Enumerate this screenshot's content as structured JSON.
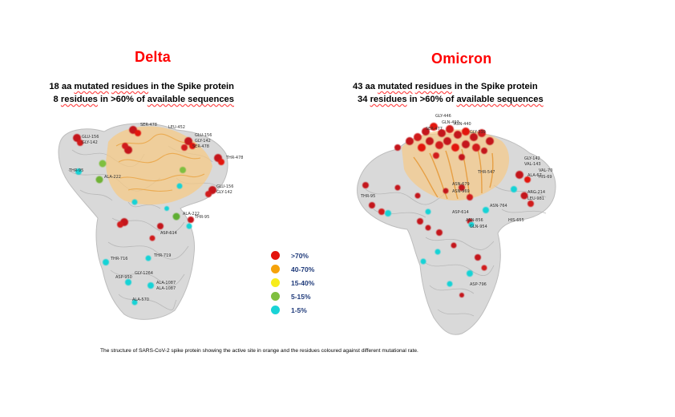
{
  "delta": {
    "title": "Delta",
    "line1_pre": "18 aa ",
    "line1_u1": "mutated",
    "line1_mid": " ",
    "line1_u2": "residues",
    "line1_post": " in the Spike protein",
    "line2_pre": "8 ",
    "line2_u1": "residues",
    "line2_mid": " in >60% of ",
    "line2_u2": "available sequences",
    "labels": [
      "GLU-156",
      "GLY-142",
      "THR-95",
      "ALA-222",
      "SER-478",
      "LEU-452",
      "GLU-156",
      "GLY-142",
      "SER-478",
      "THR-478",
      "GLU-156",
      "GLY-142",
      "ALA-222",
      "THR-95",
      "ASP-614",
      "THR-719",
      "GLY-1264",
      "ALA-1087",
      "ALA-1087",
      "ASP-950",
      "THR-716",
      "ALA-570"
    ]
  },
  "omicron": {
    "title": "Omicron",
    "line1_pre": "43 aa ",
    "line1_u1": "mutated",
    "line1_mid": " ",
    "line1_u2": "residues",
    "line1_post": " in the Spike protein",
    "line2_pre": "34 ",
    "line2_u1": "residues",
    "line2_mid": " in >60% of ",
    "line2_u2": "available sequences",
    "labels": [
      "GLY-446",
      "GLN-493",
      "ASN-440",
      "SER-477",
      "GLY-339",
      "GLY-142",
      "VAL-143",
      "ALA-67",
      "VAL-70",
      "HIS-69",
      "THR-547",
      "ASN-969",
      "ARG-214",
      "LEU-981",
      "ASN-679",
      "ASN-764",
      "HIS-655",
      "GLN-954",
      "ASP-614",
      "ASN-856",
      "ASP-796",
      "THR-95"
    ]
  },
  "legend": [
    {
      "label": ">70%",
      "color": "#e3120b"
    },
    {
      "label": "40-70%",
      "color": "#f5a20a"
    },
    {
      "label": "15-40%",
      "color": "#f7ec1a"
    },
    {
      "label": "5-15%",
      "color": "#7fbf3f"
    },
    {
      "label": "1-5%",
      "color": "#19d3d6"
    }
  ],
  "caption": "The structure of SARS-CoV-2 spike protein showing the active site in orange and the residues coloured against different mutational rate."
}
